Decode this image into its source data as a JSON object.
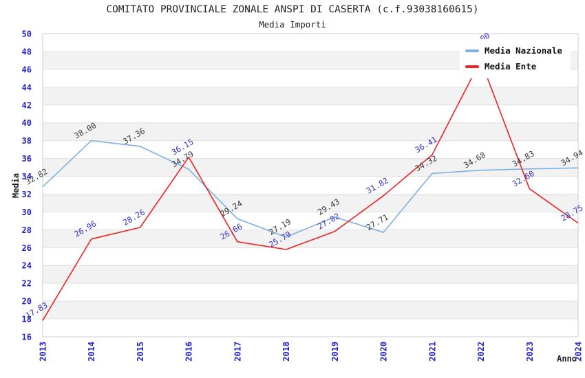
{
  "title": "COMITATO PROVINCIALE ZONALE ANSPI DI CASERTA (c.f.93038160615)",
  "subtitle": "Media Importi",
  "chart_data": {
    "type": "line",
    "x": [
      "2013",
      "2014",
      "2015",
      "2016",
      "2017",
      "2018",
      "2019",
      "2020",
      "2021",
      "2022",
      "2023",
      "2024"
    ],
    "series": [
      {
        "name": "Media Nazionale",
        "color": "#7cb1e2",
        "label_color": "#3a3a3a",
        "values": [
          32.82,
          38.0,
          37.36,
          34.79,
          29.24,
          27.19,
          29.43,
          27.71,
          34.32,
          34.68,
          34.83,
          34.94
        ]
      },
      {
        "name": "Media Ente",
        "color": "#ee2222",
        "label_color": "#3333cc",
        "values": [
          17.83,
          26.96,
          28.26,
          36.15,
          26.66,
          25.79,
          27.82,
          31.82,
          36.41,
          47.0,
          32.6,
          28.75
        ]
      }
    ],
    "xlabel": "Anno",
    "ylabel": "Media",
    "ylim": [
      16,
      50
    ],
    "ytick_step": 2,
    "grid": true,
    "band_color": "#f2f2f2",
    "grid_color": "#e0e0e0",
    "border_color": "#cccccc",
    "axis_tick_color": "#2222cc",
    "legend_position": "top-right",
    "point_label_format": "0.00"
  }
}
